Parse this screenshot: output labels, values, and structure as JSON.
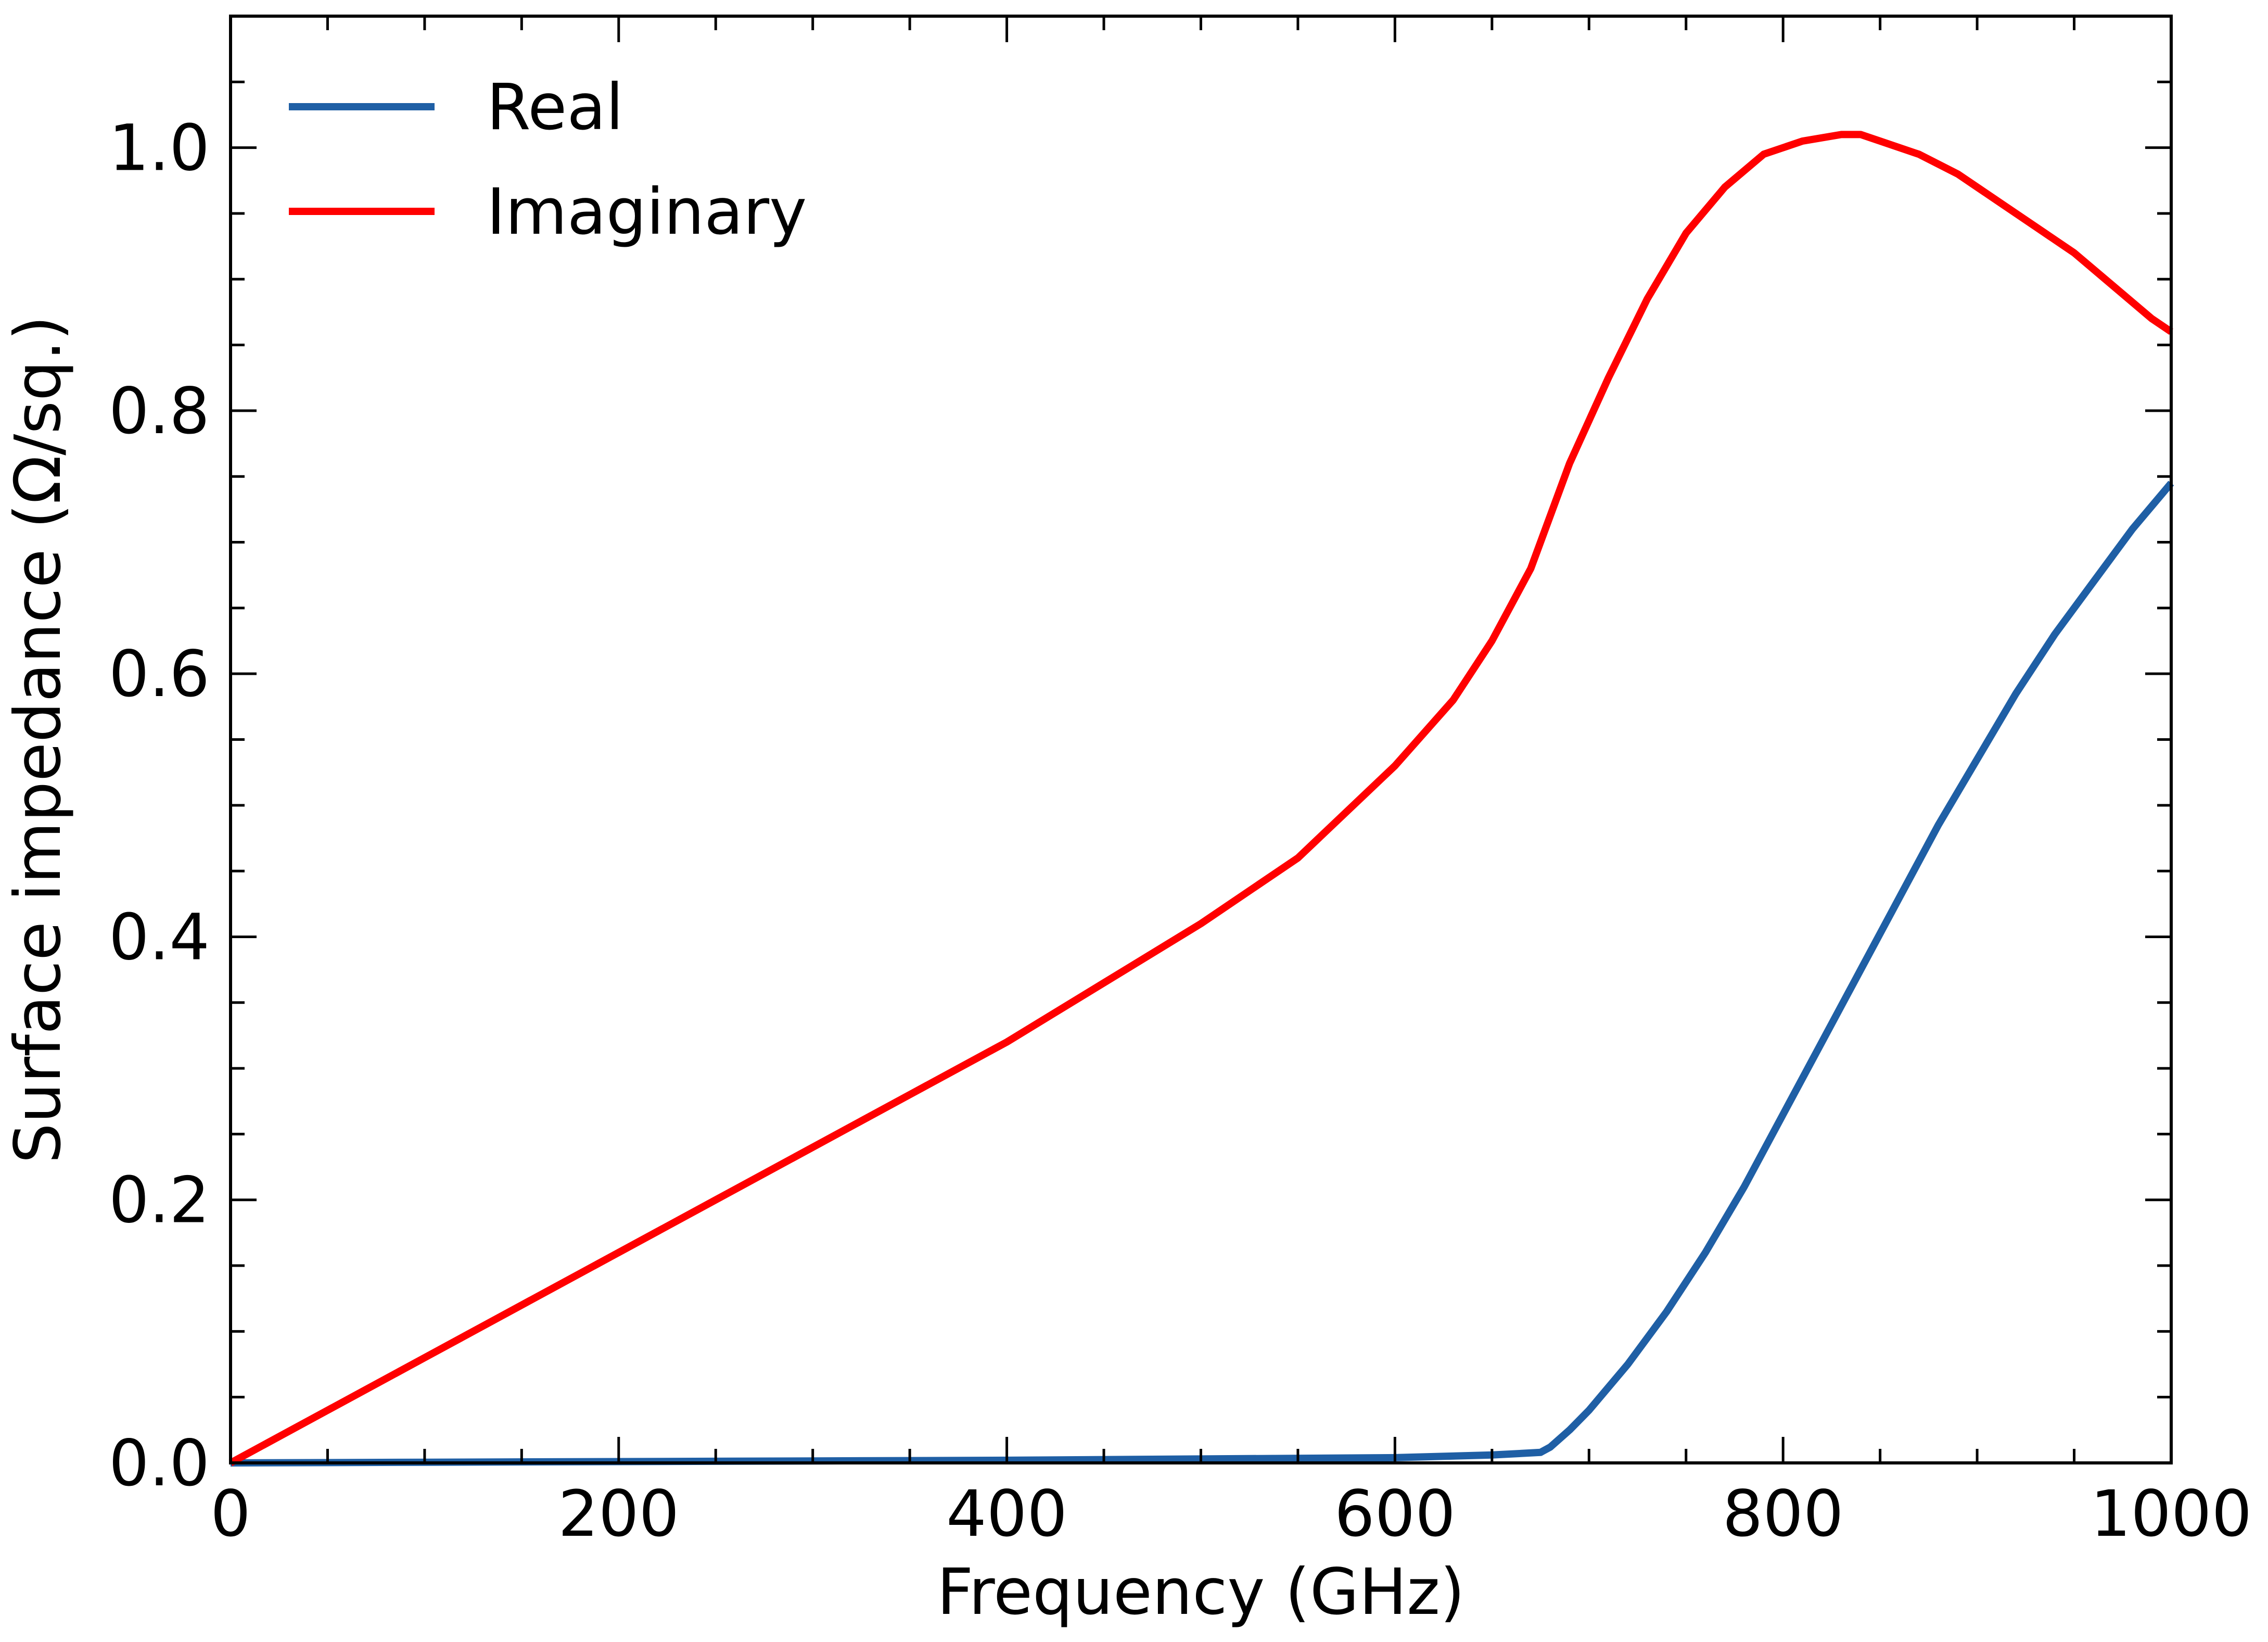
{
  "chart_data": {
    "type": "line",
    "title": "",
    "xlabel": "Frequency (GHz)",
    "ylabel": "Surface impedance (Ω/sq.)",
    "xlim": [
      0,
      1000
    ],
    "ylim": [
      0,
      1.1
    ],
    "xticks": [
      0,
      200,
      400,
      600,
      800,
      1000
    ],
    "xtick_labels": [
      "0",
      "200",
      "400",
      "600",
      "800",
      "1000"
    ],
    "yticks": [
      0.0,
      0.2,
      0.4,
      0.6,
      0.8,
      1.0
    ],
    "ytick_labels": [
      "0.0",
      "0.2",
      "0.4",
      "0.6",
      "0.8",
      "1.0"
    ],
    "x_minor_step": 50,
    "y_minor_step": 0.05,
    "tick_direction": "in",
    "grid": false,
    "legend_position": "upper-left",
    "series": [
      {
        "name": "Real",
        "color": "#1f5fa5",
        "x": [
          0,
          100,
          200,
          300,
          400,
          500,
          600,
          650,
          675,
          680,
          690,
          700,
          720,
          740,
          760,
          780,
          800,
          820,
          840,
          860,
          880,
          900,
          920,
          940,
          960,
          980,
          1000
        ],
        "y": [
          0.0,
          0.0005,
          0.001,
          0.0015,
          0.002,
          0.003,
          0.004,
          0.006,
          0.008,
          0.012,
          0.025,
          0.04,
          0.075,
          0.115,
          0.16,
          0.21,
          0.265,
          0.32,
          0.375,
          0.43,
          0.485,
          0.535,
          0.585,
          0.63,
          0.67,
          0.71,
          0.745
        ]
      },
      {
        "name": "Imaginary",
        "color": "#ff0000",
        "x": [
          0,
          50,
          100,
          150,
          200,
          250,
          300,
          350,
          400,
          450,
          500,
          550,
          600,
          630,
          650,
          670,
          690,
          710,
          730,
          750,
          770,
          790,
          810,
          830,
          840,
          850,
          870,
          890,
          910,
          930,
          950,
          970,
          990,
          1000
        ],
        "y": [
          0.0,
          0.04,
          0.08,
          0.12,
          0.16,
          0.2,
          0.24,
          0.28,
          0.32,
          0.365,
          0.41,
          0.46,
          0.53,
          0.58,
          0.625,
          0.68,
          0.76,
          0.825,
          0.885,
          0.935,
          0.97,
          0.995,
          1.005,
          1.01,
          1.01,
          1.005,
          0.995,
          0.98,
          0.96,
          0.94,
          0.92,
          0.895,
          0.87,
          0.86
        ]
      }
    ]
  }
}
